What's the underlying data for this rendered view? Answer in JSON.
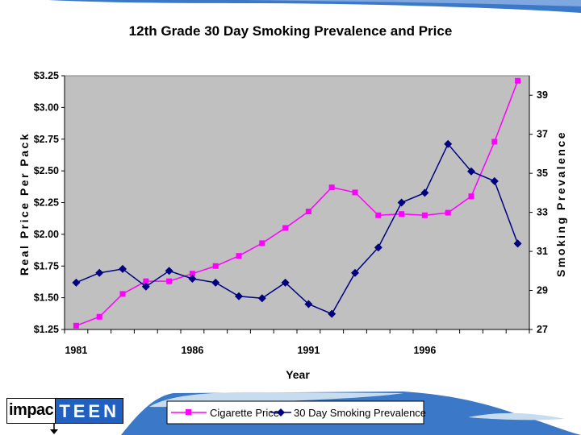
{
  "brand": {
    "logo_prefix": "impac",
    "logo_suffix": "TEEN"
  },
  "colors": {
    "plot_bg": "#c0c0c0",
    "price": "#ff00ff",
    "prevalence": "#000080",
    "decor_blue": "#3c78c8"
  },
  "chart_data": {
    "type": "line",
    "title": "12th Grade 30 Day Smoking Prevalence and Price",
    "xlabel": "Year",
    "ylabel_left": "Real Price Per Pack",
    "ylabel_right": "Smoking Prevalence",
    "x": [
      1981,
      1982,
      1983,
      1984,
      1985,
      1986,
      1987,
      1988,
      1989,
      1990,
      1991,
      1992,
      1993,
      1994,
      1995,
      1996,
      1997,
      1998,
      1999,
      2000
    ],
    "x_ticks": [
      "1981",
      "1986",
      "1991",
      "1996"
    ],
    "ylim_left": [
      1.25,
      3.25
    ],
    "yticks_left": [
      "$1.25",
      "$1.50",
      "$1.75",
      "$2.00",
      "$2.25",
      "$2.50",
      "$2.75",
      "$3.00",
      "$3.25"
    ],
    "ylim_right": [
      27,
      40
    ],
    "yticks_right": [
      "27",
      "29",
      "31",
      "33",
      "35",
      "37",
      "39"
    ],
    "legend_position": "bottom",
    "series": [
      {
        "name": "Cigarette Price",
        "axis": "left",
        "marker": "square",
        "values": [
          1.28,
          1.35,
          1.53,
          1.63,
          1.63,
          1.69,
          1.75,
          1.83,
          1.93,
          2.05,
          2.18,
          2.37,
          2.33,
          2.15,
          2.16,
          2.15,
          2.17,
          2.3,
          2.73,
          3.21
        ]
      },
      {
        "name": "30 Day Smoking Prevalence",
        "axis": "right",
        "marker": "diamond",
        "values": [
          29.4,
          29.9,
          30.1,
          29.2,
          30.0,
          29.6,
          29.4,
          28.7,
          28.6,
          29.4,
          28.3,
          27.8,
          29.9,
          31.2,
          33.5,
          34.0,
          36.5,
          35.1,
          34.6,
          31.4
        ]
      }
    ]
  }
}
